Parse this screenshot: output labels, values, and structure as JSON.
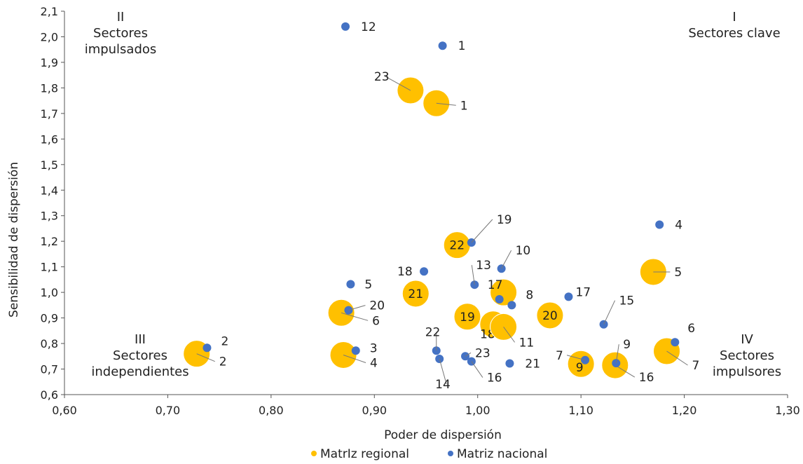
{
  "chart_data": {
    "type": "scatter",
    "xlabel": "Poder de dispersión",
    "ylabel": "Sensibilidad de dispersión",
    "xlim": [
      0.6,
      1.3
    ],
    "ylim": [
      0.6,
      2.1
    ],
    "x_ticks": [
      0.6,
      0.7,
      0.8,
      0.9,
      1.0,
      1.1,
      1.2,
      1.3
    ],
    "y_ticks": [
      0.6,
      0.7,
      0.8,
      0.9,
      1.0,
      1.1,
      1.2,
      1.3,
      1.4,
      1.5,
      1.6,
      1.7,
      1.8,
      1.9,
      2.0,
      2.1
    ],
    "x_tick_labels": [
      "0,60",
      "0,70",
      "0,80",
      "0,90",
      "1,00",
      "1,10",
      "1,20",
      "1,30"
    ],
    "y_tick_labels": [
      "0,6",
      "0,7",
      "0,8",
      "0,9",
      "1,0",
      "1,1",
      "1,2",
      "1,3",
      "1,4",
      "1,5",
      "1,6",
      "1,7",
      "1,8",
      "1,9",
      "2,0",
      "2,1"
    ],
    "grid": false,
    "legend_position": "bottom",
    "legend": [
      "MatrIz regional",
      "Matriz nacional"
    ],
    "quadrants": [
      {
        "num": "II",
        "line1": "Sectores",
        "line2": "impulsados"
      },
      {
        "num": "I",
        "line1": "Sectores clave",
        "line2": ""
      },
      {
        "num": "III",
        "line1": "Sectores",
        "line2": "independientes"
      },
      {
        "num": "IV",
        "line1": "Sectores",
        "line2": "impulsores"
      }
    ],
    "series": [
      {
        "name": "MatrIz regional",
        "color": "#FFC000",
        "points": [
          {
            "label": "23",
            "x": 0.935,
            "y": 1.79
          },
          {
            "label": "1",
            "x": 0.96,
            "y": 1.74
          },
          {
            "label": "22",
            "x": 0.98,
            "y": 1.185
          },
          {
            "label": "5",
            "x": 1.17,
            "y": 1.08
          },
          {
            "label": "21",
            "x": 0.94,
            "y": 0.995
          },
          {
            "label": "17",
            "x": 1.025,
            "y": 1.0
          },
          {
            "label": "6",
            "x": 0.868,
            "y": 0.92
          },
          {
            "label": "19",
            "x": 0.99,
            "y": 0.905
          },
          {
            "label": "20",
            "x": 1.07,
            "y": 0.91
          },
          {
            "label": "18",
            "x": 1.015,
            "y": 0.875
          },
          {
            "label": "11",
            "x": 1.025,
            "y": 0.865
          },
          {
            "label": "2",
            "x": 0.728,
            "y": 0.76
          },
          {
            "label": "4",
            "x": 0.87,
            "y": 0.755
          },
          {
            "label": "7",
            "x": 1.183,
            "y": 0.77
          },
          {
            "label": "9",
            "x": 1.1,
            "y": 0.72
          },
          {
            "label": "16",
            "x": 1.133,
            "y": 0.715
          }
        ]
      },
      {
        "name": "Matriz nacional",
        "color": "#4472C4",
        "points": [
          {
            "label": "12",
            "x": 0.872,
            "y": 2.04
          },
          {
            "label": "1",
            "x": 0.966,
            "y": 1.965
          },
          {
            "label": "4",
            "x": 1.176,
            "y": 1.265
          },
          {
            "label": "19",
            "x": 0.994,
            "y": 1.195
          },
          {
            "label": "10",
            "x": 1.023,
            "y": 1.093
          },
          {
            "label": "18",
            "x": 0.948,
            "y": 1.082
          },
          {
            "label": "5",
            "x": 0.877,
            "y": 1.032
          },
          {
            "label": "13",
            "x": 0.997,
            "y": 1.03
          },
          {
            "label": "17",
            "x": 1.088,
            "y": 0.983
          },
          {
            "label": "11",
            "x": 1.021,
            "y": 0.973
          },
          {
            "label": "8",
            "x": 1.033,
            "y": 0.95
          },
          {
            "label": "20",
            "x": 0.875,
            "y": 0.93
          },
          {
            "label": "15",
            "x": 1.122,
            "y": 0.875
          },
          {
            "label": "6",
            "x": 1.191,
            "y": 0.805
          },
          {
            "label": "2",
            "x": 0.738,
            "y": 0.783
          },
          {
            "label": "3",
            "x": 0.882,
            "y": 0.772
          },
          {
            "label": "22",
            "x": 0.96,
            "y": 0.772
          },
          {
            "label": "23",
            "x": 0.988,
            "y": 0.75
          },
          {
            "label": "14",
            "x": 0.963,
            "y": 0.74
          },
          {
            "label": "7",
            "x": 1.104,
            "y": 0.735
          },
          {
            "label": "16",
            "x": 0.994,
            "y": 0.73
          },
          {
            "label": "9",
            "x": 1.134,
            "y": 0.723
          },
          {
            "label": "21",
            "x": 1.031,
            "y": 0.722
          }
        ]
      }
    ]
  }
}
